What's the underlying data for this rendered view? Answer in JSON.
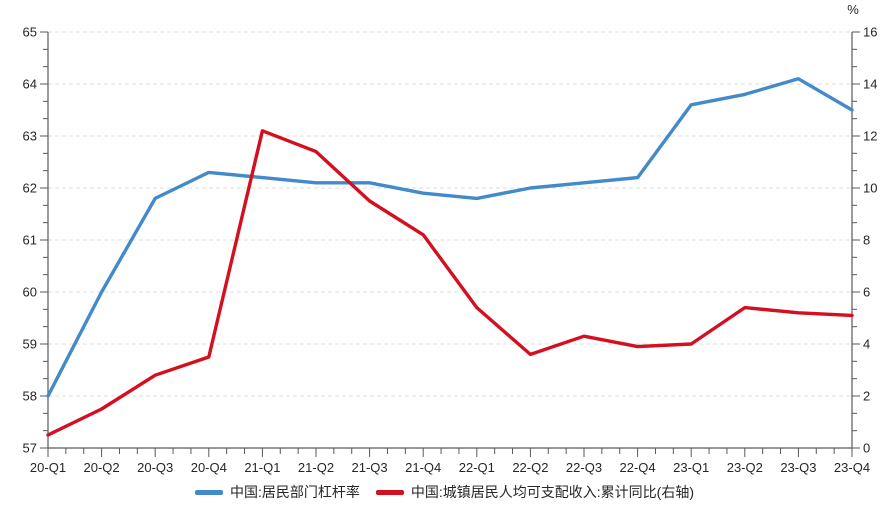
{
  "chart_data": {
    "type": "line",
    "title": "",
    "categories": [
      "20-Q1",
      "20-Q2",
      "20-Q3",
      "20-Q4",
      "21-Q1",
      "21-Q2",
      "21-Q3",
      "21-Q4",
      "22-Q1",
      "22-Q2",
      "22-Q3",
      "22-Q4",
      "23-Q1",
      "23-Q2",
      "23-Q3",
      "23-Q4"
    ],
    "series": [
      {
        "name": "中国:居民部门杠杆率",
        "axis": "left",
        "color": "#428aca",
        "values": [
          58.0,
          60.0,
          61.8,
          62.3,
          62.2,
          62.1,
          62.1,
          61.9,
          61.8,
          62.0,
          62.1,
          62.2,
          63.6,
          63.8,
          64.1,
          63.5
        ]
      },
      {
        "name": "中国:城镇居民人均可支配收入:累计同比(右轴)",
        "axis": "right",
        "color": "#d40f1f",
        "values": [
          0.5,
          1.5,
          2.8,
          3.5,
          12.2,
          11.4,
          9.5,
          8.2,
          5.4,
          3.6,
          4.3,
          3.9,
          4.0,
          5.4,
          5.2,
          5.1
        ]
      }
    ],
    "left_axis": {
      "min": 57,
      "max": 65,
      "ticks": [
        57,
        58,
        59,
        60,
        61,
        62,
        63,
        64,
        65
      ],
      "minor_divisions": 3
    },
    "right_axis": {
      "min": 0,
      "max": 16,
      "ticks": [
        0,
        2,
        4,
        6,
        8,
        10,
        12,
        14,
        16
      ],
      "minor_divisions": 3,
      "unit": "%"
    },
    "grid": {
      "horizontal": "dashed",
      "vertical": "none"
    },
    "legend_position": "bottom-center",
    "styles": {
      "grid_color": "#dcdcdc",
      "axis_color": "#595959",
      "text_color": "#262626",
      "background": "#ffffff"
    }
  }
}
